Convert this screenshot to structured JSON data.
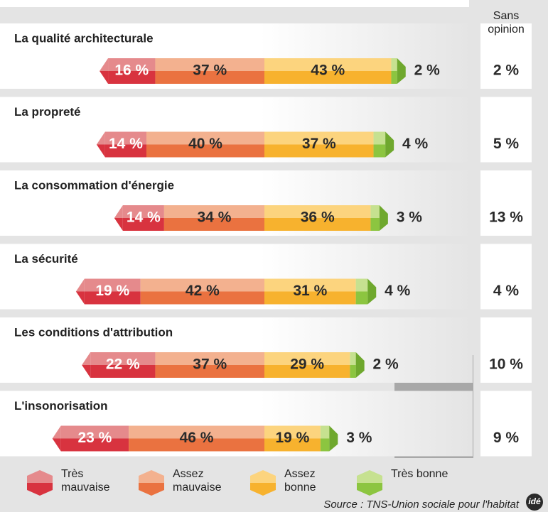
{
  "chart_data": {
    "type": "diverging-bar",
    "categories": [
      "La qualité architecturale",
      "La propreté",
      "La consommation d'énergie",
      "La sécurité",
      "Les conditions d'attribution",
      "L'insonorisation"
    ],
    "series": [
      {
        "name": "Très mauvaise",
        "color": "#d8333f",
        "light": "#e58a8c",
        "values": [
          16,
          14,
          14,
          19,
          22,
          23
        ],
        "value_labels": [
          "16 %",
          "14 %",
          "14 %",
          "19 %",
          "22 %",
          "23 %"
        ]
      },
      {
        "name": "Assez mauvaise",
        "color": "#ea7240",
        "light": "#f3b18f",
        "values": [
          37,
          40,
          34,
          42,
          37,
          46
        ],
        "value_labels": [
          "37 %",
          "40 %",
          "34 %",
          "42 %",
          "37 %",
          "46 %"
        ]
      },
      {
        "name": "Assez bonne",
        "color": "#f7b22e",
        "light": "#fcd47e",
        "values": [
          43,
          37,
          36,
          31,
          29,
          19
        ],
        "value_labels": [
          "43 %",
          "37 %",
          "36 %",
          "31 %",
          "29 %",
          "19 %"
        ]
      },
      {
        "name": "Très bonne",
        "color": "#8cc540",
        "light": "#c6e190",
        "values": [
          2,
          4,
          3,
          4,
          2,
          3
        ],
        "value_labels": [
          "2 %",
          "4 %",
          "3 %",
          "4 %",
          "2 %",
          "3 %"
        ]
      },
      {
        "name": "Sans opinion",
        "values": [
          2,
          5,
          13,
          4,
          10,
          9
        ],
        "value_labels": [
          "2 %",
          "5 %",
          "13 %",
          "4 %",
          "10 %",
          "9 %"
        ]
      }
    ],
    "source": "Source : TNS-Union sociale pour l'habitat",
    "logo": "idé"
  }
}
